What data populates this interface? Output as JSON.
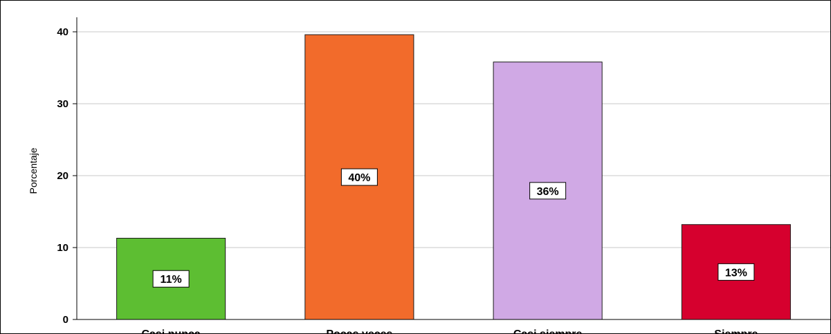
{
  "chart_data": {
    "type": "bar",
    "title": "",
    "xlabel": "",
    "ylabel": "Porcentaje",
    "ylim": [
      0,
      40
    ],
    "yticks": [
      0,
      10,
      20,
      30,
      40
    ],
    "grid": true,
    "categories": [
      "Casi nunca",
      "Pocas veces",
      "Casi siempre",
      "Siempre"
    ],
    "values": [
      11.3,
      39.6,
      35.8,
      13.2
    ],
    "data_labels": [
      "11%",
      "40%",
      "36%",
      "13%"
    ],
    "colors": [
      "#5dbe32",
      "#f26b2b",
      "#d0a9e5",
      "#d6002e"
    ]
  }
}
